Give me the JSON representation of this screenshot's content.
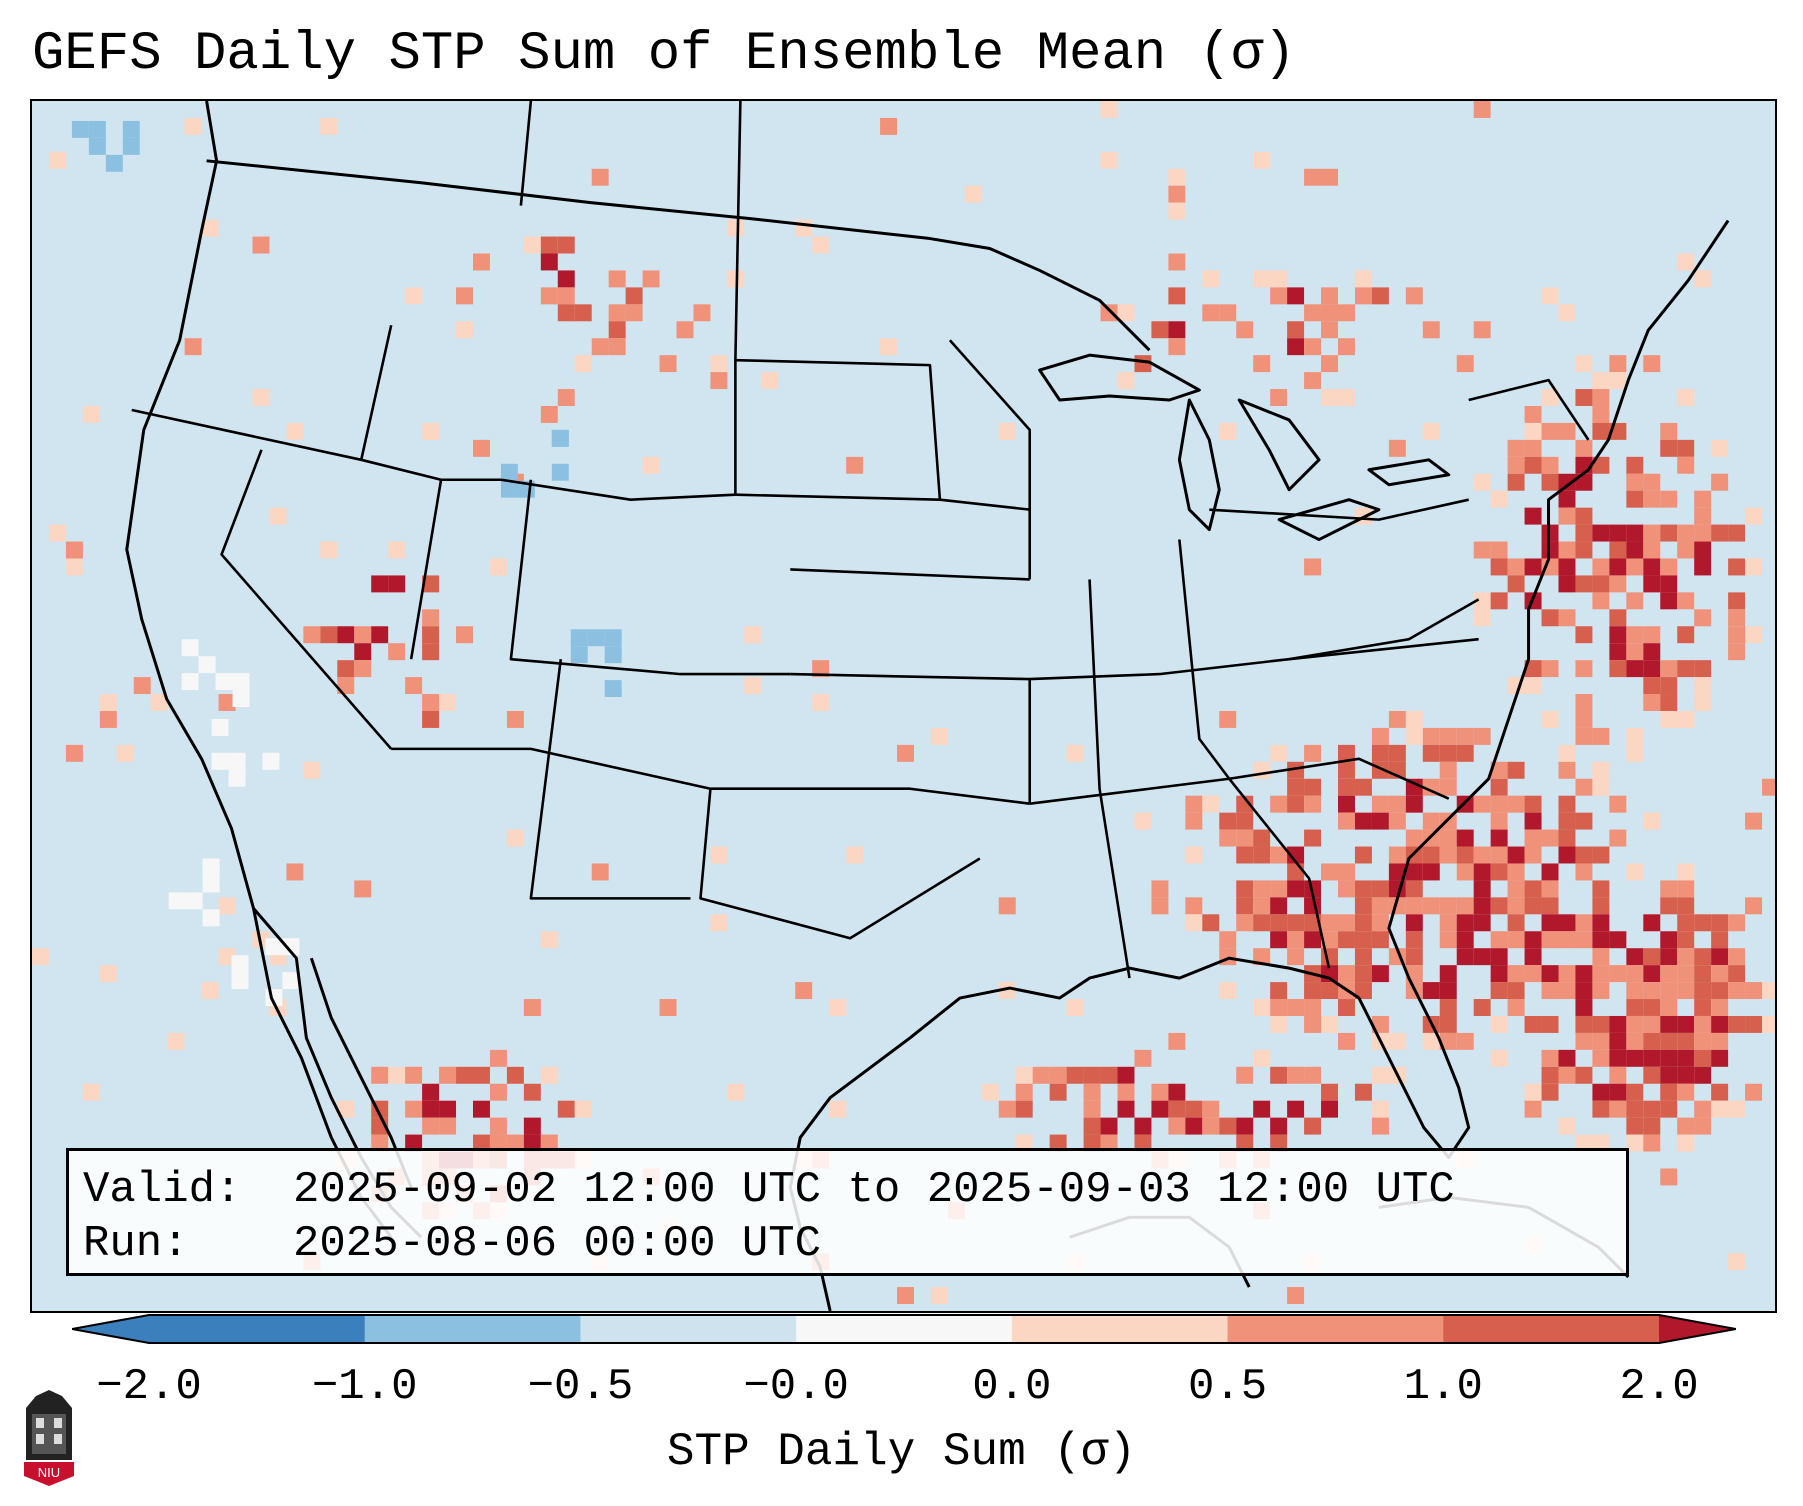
{
  "title": "GEFS Daily STP Sum of Ensemble Mean (σ)",
  "info": {
    "valid_key": "Valid:",
    "valid_value": "2025-09-02 12:00 UTC to 2025-09-03 12:00 UTC",
    "run_key": "Run:",
    "run_value": "2025-08-06 00:00 UTC"
  },
  "colorbar": {
    "label": "STP Daily Sum (σ)",
    "ticks": [
      "−2.0",
      "−1.0",
      "−0.5",
      "−0.0",
      "0.0",
      "0.5",
      "1.0",
      "2.0"
    ],
    "colors": [
      "#3b7fbd",
      "#8cc0e0",
      "#cfe3ef",
      "#f7f7f7",
      "#fbd6c2",
      "#f0917a",
      "#d6604d",
      "#b2182b"
    ],
    "extend": "both"
  },
  "map": {
    "background_color": "#d1e5f0",
    "region": "Contiguous United States, southern Canada, northern Mexico, Gulf of Mexico",
    "logo_text": "NIU"
  }
}
